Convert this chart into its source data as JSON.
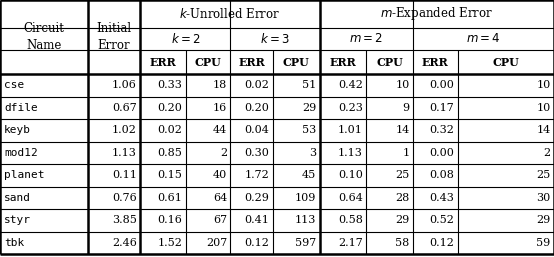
{
  "circuit_names": [
    "cse",
    "dfile",
    "keyb",
    "mod12",
    "planet",
    "sand",
    "styr",
    "tbk"
  ],
  "initial_error": [
    "1.06",
    "0.67",
    "1.02",
    "1.13",
    "0.11",
    "0.76",
    "3.85",
    "2.46"
  ],
  "k2_err": [
    "0.33",
    "0.20",
    "0.02",
    "0.85",
    "0.15",
    "0.61",
    "0.16",
    "1.52"
  ],
  "k2_cpu": [
    "18",
    "16",
    "44",
    "2",
    "40",
    "64",
    "67",
    "207"
  ],
  "k3_err": [
    "0.02",
    "0.20",
    "0.04",
    "0.30",
    "1.72",
    "0.29",
    "0.41",
    "0.12"
  ],
  "k3_cpu": [
    "51",
    "29",
    "53",
    "3",
    "45",
    "109",
    "113",
    "597"
  ],
  "m2_err": [
    "0.42",
    "0.23",
    "1.01",
    "1.13",
    "0.10",
    "0.64",
    "0.58",
    "2.17"
  ],
  "m2_cpu": [
    "10",
    "9",
    "14",
    "1",
    "25",
    "28",
    "29",
    "58"
  ],
  "m4_err": [
    "0.00",
    "0.17",
    "0.32",
    "0.00",
    "0.08",
    "0.43",
    "0.52",
    "0.12"
  ],
  "m4_cpu": [
    "10",
    "10",
    "14",
    "2",
    "25",
    "30",
    "29",
    "59"
  ],
  "bg_color": "#ffffff",
  "line_color": "#000000",
  "text_color": "#000000",
  "lw_thick": 1.8,
  "lw_thin": 0.8,
  "lw_mid": 1.2
}
